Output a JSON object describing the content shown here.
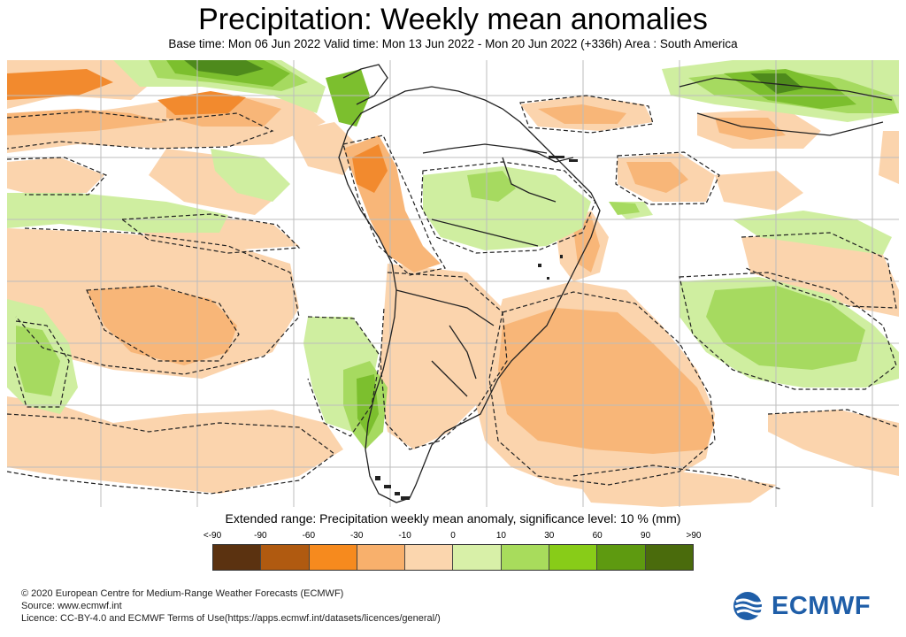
{
  "header": {
    "title": "Precipitation: Weekly mean anomalies",
    "subtitle": "Base time: Mon 06 Jun 2022 Valid time: Mon 13 Jun 2022 - Mon 20 Jun 2022 (+336h) Area : South America"
  },
  "legend": {
    "title": "Extended range: Precipitation weekly mean anomaly, significance level: 10 % (mm)",
    "ticks": [
      "<-90",
      "-90",
      "-60",
      "-30",
      "-10",
      "0",
      "10",
      "30",
      "60",
      "90",
      ">90"
    ],
    "colors": [
      "#5b3210",
      "#b05a10",
      "#f68a1e",
      "#f8b06c",
      "#fbd6ae",
      "#d8f0a8",
      "#a8dc5c",
      "#88cc18",
      "#5e9a10",
      "#4a6b0c"
    ]
  },
  "map_colors": {
    "dry_strong": "#f28a2e",
    "dry": "#f8b678",
    "dry_light": "#fbd4ad",
    "wet_light": "#cfeea0",
    "wet": "#a6da60",
    "wet_strong": "#7cbf2e",
    "wet_very_strong": "#4e8a1c"
  },
  "footer": {
    "line1": "© 2020 European Centre for Medium-Range Weather Forecasts (ECMWF)",
    "line2": "Source: www.ecmwf.int",
    "line3": "Licence: CC-BY-4.0 and ECMWF Terms of Use(https://apps.ecmwf.int/datasets/licences/general/)"
  },
  "logo": {
    "text": "ECMWF",
    "color": "#1f5ea8"
  }
}
